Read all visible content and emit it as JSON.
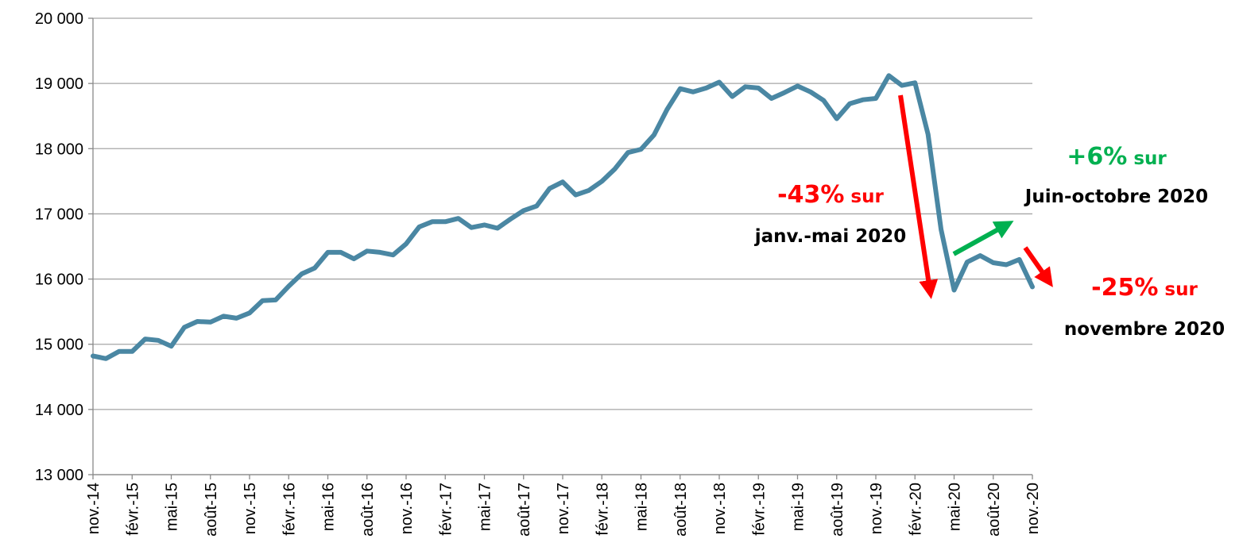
{
  "chart_data": {
    "type": "line",
    "categories": [
      "nov.-14",
      null,
      null,
      "févr.-15",
      null,
      null,
      "mai-15",
      null,
      null,
      "août-15",
      null,
      null,
      "nov.-15",
      null,
      null,
      "févr.-16",
      null,
      null,
      "mai-16",
      null,
      null,
      "août-16",
      null,
      null,
      "nov.-16",
      null,
      null,
      "févr.-17",
      null,
      null,
      "mai-17",
      null,
      null,
      "août-17",
      null,
      null,
      "nov.-17",
      null,
      null,
      "févr.-18",
      null,
      null,
      "mai-18",
      null,
      null,
      "août-18",
      null,
      null,
      "nov.-18",
      null,
      null,
      "févr.-19",
      null,
      null,
      "mai-19",
      null,
      null,
      "août-19",
      null,
      null,
      "nov.-19",
      null,
      null,
      "févr.-20",
      null,
      null,
      "mai-20",
      null,
      null,
      "août-20",
      null,
      null,
      "nov.-20"
    ],
    "series": [
      {
        "color": "#4a87a3",
        "values": [
          14820,
          14780,
          14890,
          14890,
          15080,
          15060,
          14970,
          15260,
          15350,
          15340,
          15430,
          15400,
          15480,
          15670,
          15680,
          15890,
          16080,
          16170,
          16410,
          16410,
          16310,
          16430,
          16410,
          16370,
          16540,
          16800,
          16880,
          16880,
          16930,
          16790,
          16830,
          16780,
          16920,
          17050,
          17120,
          17390,
          17490,
          17290,
          17360,
          17500,
          17690,
          17940,
          17990,
          18210,
          18600,
          18920,
          18870,
          18930,
          19020,
          18800,
          18950,
          18930,
          18770,
          18860,
          18960,
          18870,
          18740,
          18460,
          18690,
          18750,
          18770,
          19120,
          18970,
          19010,
          18220,
          16760,
          15830,
          16260,
          16360,
          16250,
          16220,
          16300,
          15880
        ]
      }
    ],
    "ylim": [
      13000,
      20000
    ],
    "yticks": [
      {
        "value": 13000,
        "label": "13 000"
      },
      {
        "value": 14000,
        "label": "14 000"
      },
      {
        "value": 15000,
        "label": "15 000"
      },
      {
        "value": 16000,
        "label": "16 000"
      },
      {
        "value": 17000,
        "label": "17 000"
      },
      {
        "value": 18000,
        "label": "18 000"
      },
      {
        "value": 19000,
        "label": "19 000"
      },
      {
        "value": 20000,
        "label": "20 000"
      }
    ],
    "grid": true,
    "annotations": [
      {
        "pct": "-43%",
        "text": "sur",
        "line2": "janv.-mai 2020",
        "color": "#ff0000"
      },
      {
        "pct": "+6%",
        "text": "sur",
        "line2": "Juin-octobre 2020",
        "color": "#00b050"
      },
      {
        "pct": "-25%",
        "text": "sur",
        "line2": "novembre 2020",
        "color": "#ff0000"
      }
    ]
  }
}
